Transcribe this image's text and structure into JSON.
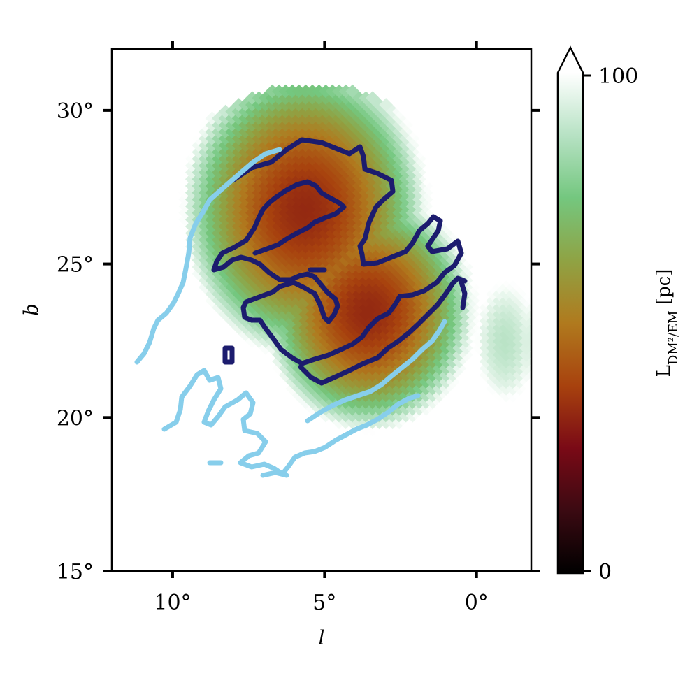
{
  "chart_data": {
    "type": "heatmap",
    "title": "",
    "xlabel": "l",
    "ylabel": "b",
    "xlim": [
      12,
      -1.8
    ],
    "ylim": [
      15,
      32
    ],
    "x_ticks": [
      {
        "value": 10,
        "label": "10°"
      },
      {
        "value": 5,
        "label": "5°"
      },
      {
        "value": 0,
        "label": "0°"
      }
    ],
    "y_ticks": [
      {
        "value": 15,
        "label": "15°"
      },
      {
        "value": 20,
        "label": "20°"
      },
      {
        "value": 25,
        "label": "25°"
      },
      {
        "value": 30,
        "label": "30°"
      }
    ],
    "colorbar": {
      "label": "L_DM²/EM [pc]",
      "label_main": "L",
      "label_sub": "DM²/EM",
      "label_unit": " [pc]",
      "min": 0,
      "max": 100,
      "tick_labels": [
        "0",
        "100"
      ],
      "extend": "max",
      "colors": [
        "#000000",
        "#3b0a12",
        "#7a0a16",
        "#a8420e",
        "#b07a1e",
        "#8fa344",
        "#74c77f",
        "#b7e2c4",
        "#ffffff"
      ]
    },
    "field": {
      "description_values": "L values peak (~35-45 pc) near l=5.5, b=27 and decrease outward to >100 at edges",
      "peak": {
        "l": 5.6,
        "b": 26.8,
        "value": 32
      },
      "secondary": {
        "l": 3.5,
        "b": 23.5,
        "value": 45
      }
    },
    "contours": [
      {
        "color": "#191970",
        "name": ""
      },
      {
        "color": "#87ceeb",
        "name": ""
      }
    ]
  }
}
